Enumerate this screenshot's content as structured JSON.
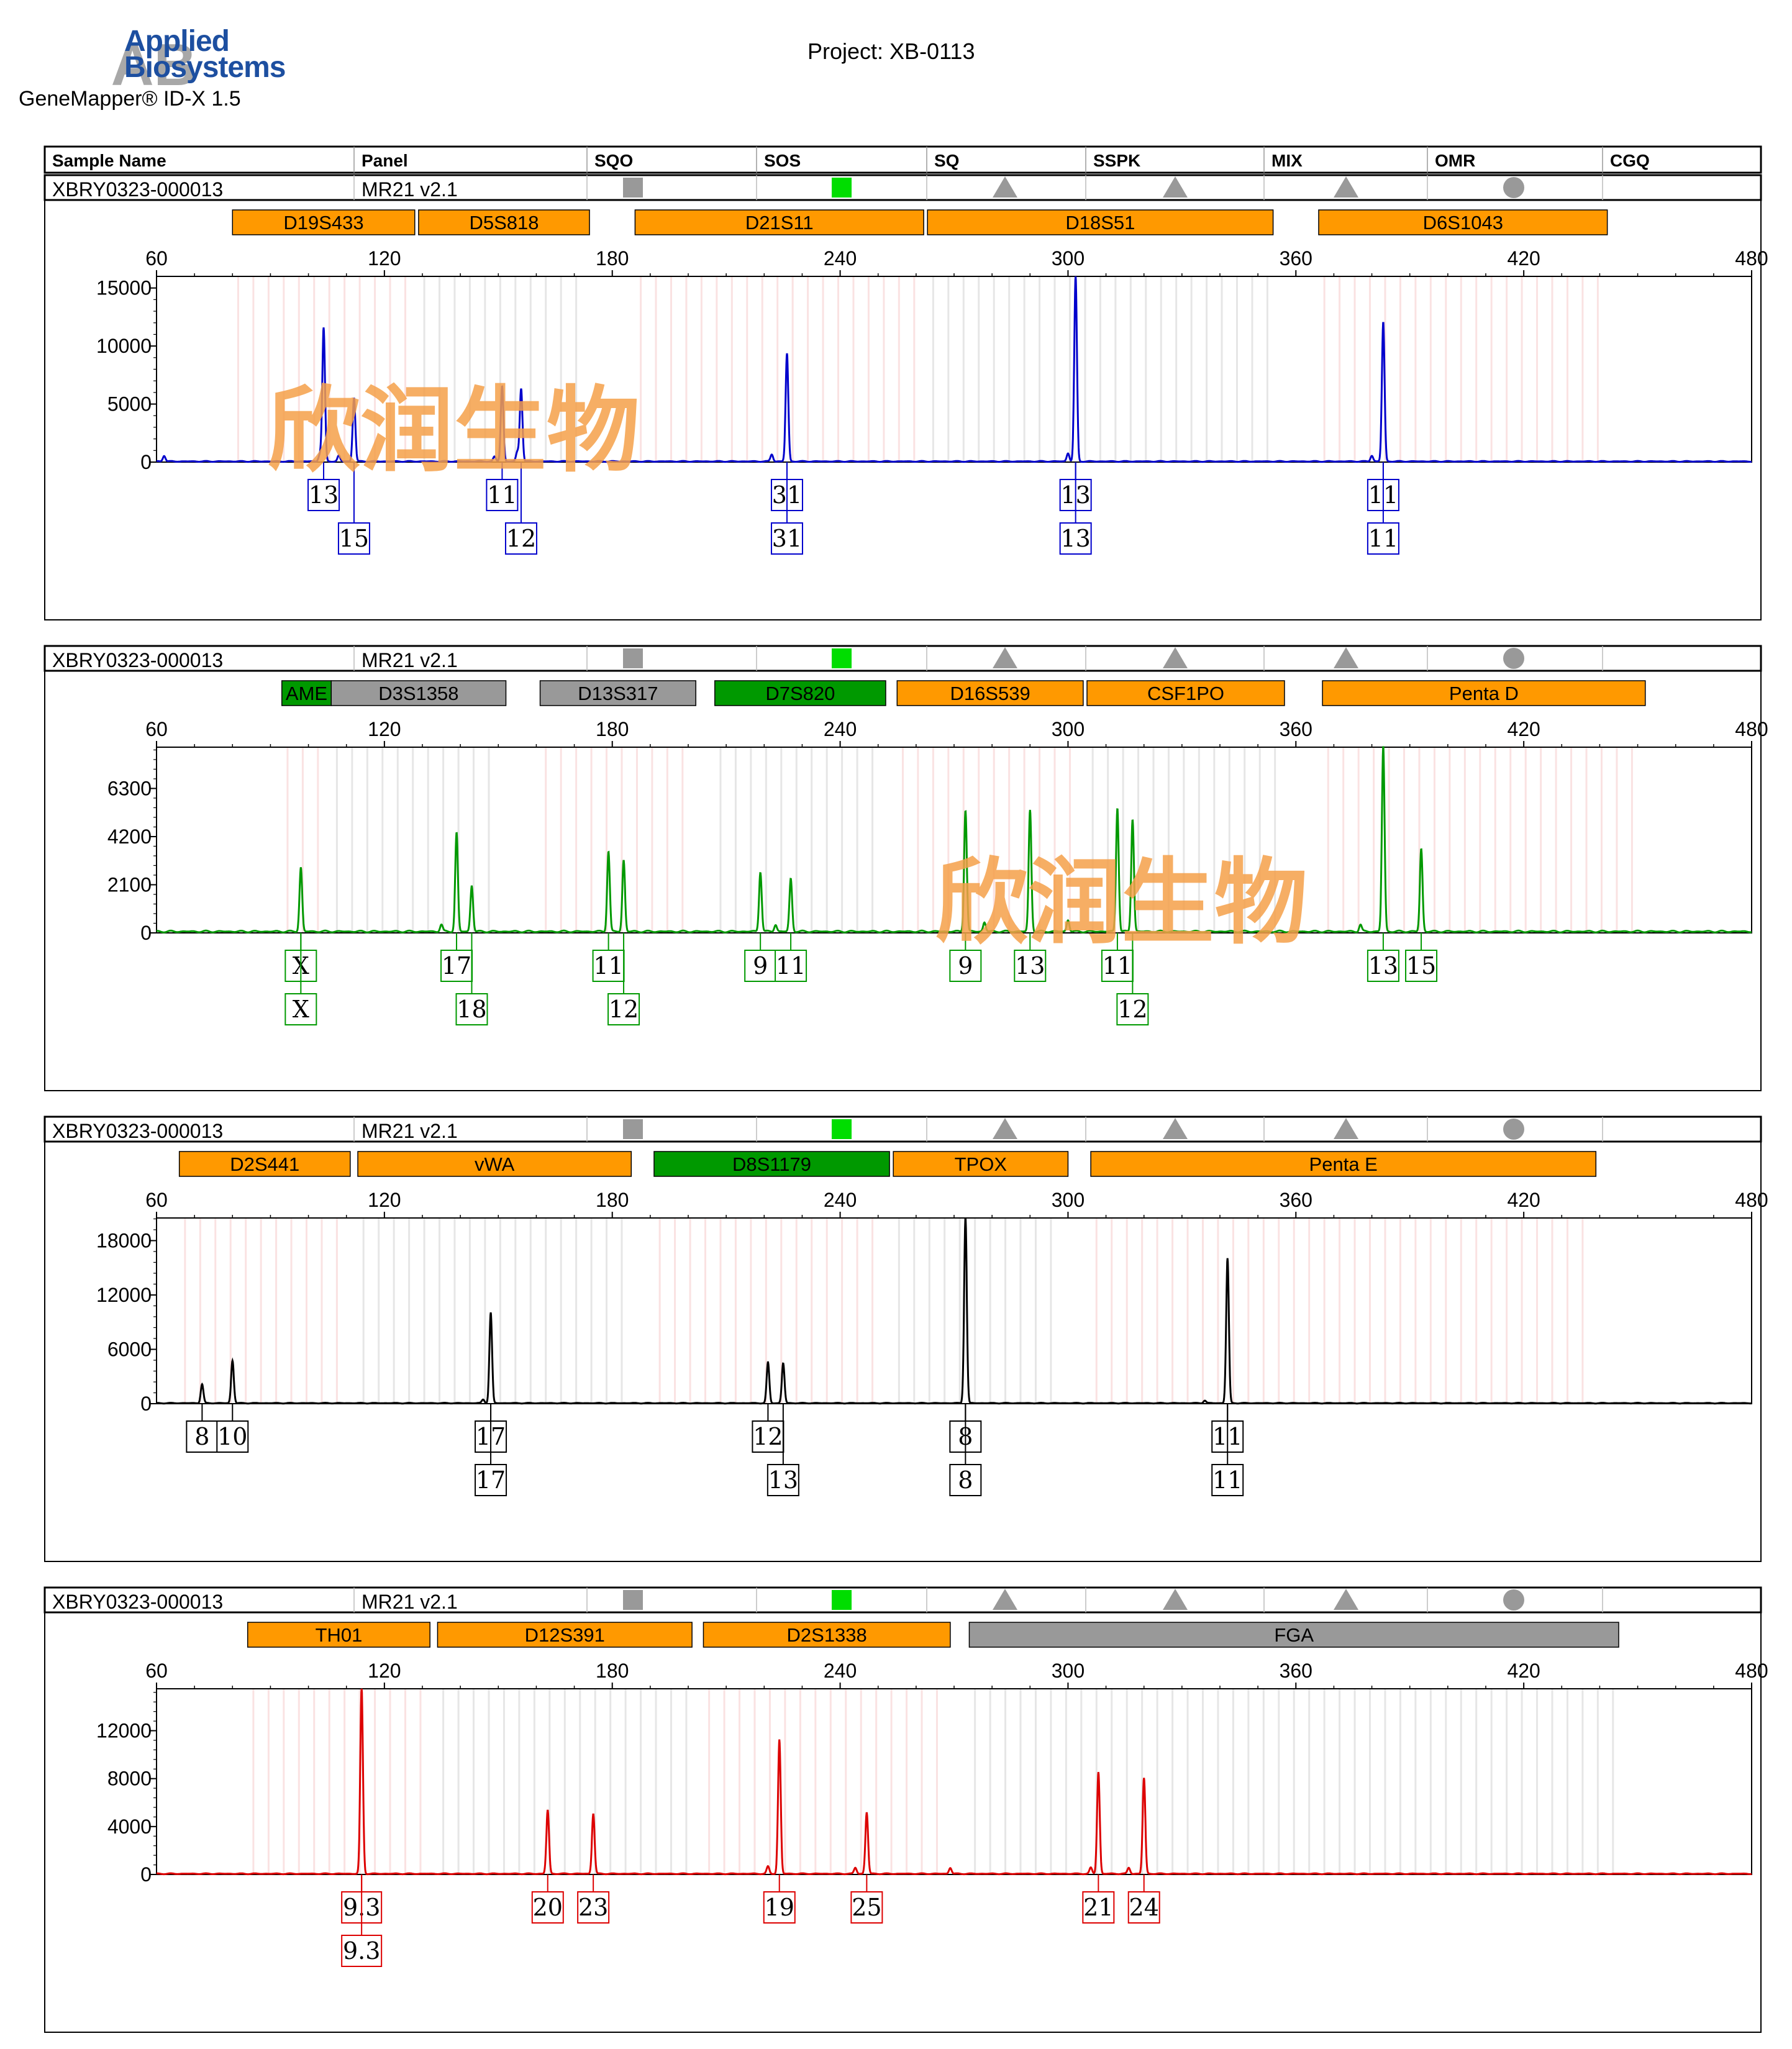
{
  "header": {
    "brand_line1": "Applied",
    "brand_line2": "Biosystems",
    "logo_letters": "AB",
    "software": "GeneMapper® ID-X  1.5",
    "project": "Project: XB-0113"
  },
  "watermark": "欣润生物",
  "table_header": [
    "Sample Name",
    "Panel",
    "SQO",
    "SOS",
    "SQ",
    "SSPK",
    "MIX",
    "OMR",
    "CGQ"
  ],
  "colors": {
    "orange": "#ff9900",
    "gray_marker": "#999999",
    "green_marker": "#009900",
    "sq_ok": "#00dd00"
  },
  "x_axis_ticks": [
    60,
    120,
    180,
    240,
    300,
    360,
    420,
    480
  ],
  "panels": [
    {
      "sample": "XBRY0323-000013",
      "panel": "MR21  v2.1",
      "flags": [
        "",
        "square-gray",
        "square-green",
        "triangle",
        "triangle",
        "triangle",
        "circle"
      ],
      "markers": [
        {
          "name": "D19S433",
          "from": 80,
          "to": 128,
          "color": "orange"
        },
        {
          "name": "D5S818",
          "from": 129,
          "to": 174,
          "color": "orange"
        },
        {
          "name": "D21S11",
          "from": 186,
          "to": 262,
          "color": "orange"
        },
        {
          "name": "D18S51",
          "from": 263,
          "to": 354,
          "color": "orange"
        },
        {
          "name": "D6S1043",
          "from": 366,
          "to": 442,
          "color": "orange"
        }
      ]
    },
    {
      "sample": "XBRY0323-000013",
      "panel": "MR21  v2.1",
      "flags": [
        "",
        "square-gray",
        "square-green",
        "triangle",
        "triangle",
        "triangle",
        "circle"
      ],
      "markers": [
        {
          "name": "AME",
          "from": 93,
          "to": 106,
          "color": "green"
        },
        {
          "name": "D3S1358",
          "from": 106,
          "to": 152,
          "color": "gray"
        },
        {
          "name": "D13S317",
          "from": 161,
          "to": 202,
          "color": "gray"
        },
        {
          "name": "D7S820",
          "from": 207,
          "to": 252,
          "color": "green"
        },
        {
          "name": "D16S539",
          "from": 255,
          "to": 304,
          "color": "orange"
        },
        {
          "name": "CSF1PO",
          "from": 305,
          "to": 357,
          "color": "orange"
        },
        {
          "name": "Penta D",
          "from": 367,
          "to": 452,
          "color": "orange"
        }
      ]
    },
    {
      "sample": "XBRY0323-000013",
      "panel": "MR21  v2.1",
      "flags": [
        "",
        "square-gray",
        "square-green",
        "triangle",
        "triangle",
        "triangle",
        "circle"
      ],
      "markers": [
        {
          "name": "D2S441",
          "from": 66,
          "to": 111,
          "color": "orange"
        },
        {
          "name": "vWA",
          "from": 113,
          "to": 185,
          "color": "orange"
        },
        {
          "name": "D8S1179",
          "from": 191,
          "to": 253,
          "color": "green"
        },
        {
          "name": "TPOX",
          "from": 254,
          "to": 300,
          "color": "orange"
        },
        {
          "name": "Penta E",
          "from": 306,
          "to": 439,
          "color": "orange"
        }
      ]
    },
    {
      "sample": "XBRY0323-000013",
      "panel": "MR21  v2.1",
      "flags": [
        "",
        "square-gray",
        "square-green",
        "triangle",
        "triangle",
        "triangle",
        "circle"
      ],
      "markers": [
        {
          "name": "TH01",
          "from": 84,
          "to": 132,
          "color": "orange"
        },
        {
          "name": "D12S391",
          "from": 134,
          "to": 201,
          "color": "orange"
        },
        {
          "name": "D2S1338",
          "from": 204,
          "to": 269,
          "color": "orange"
        },
        {
          "name": "FGA",
          "from": 274,
          "to": 445,
          "color": "gray"
        }
      ]
    }
  ],
  "chart_data": [
    {
      "type": "line",
      "color": "#0000cc",
      "xlim": [
        60,
        480
      ],
      "ylim": [
        0,
        16000
      ],
      "yticks": [
        0,
        5000,
        10000,
        15000
      ],
      "peaks": [
        [
          62,
          500
        ],
        [
          103,
          600
        ],
        [
          104,
          11500
        ],
        [
          108,
          500
        ],
        [
          112,
          5500
        ],
        [
          149,
          400
        ],
        [
          151,
          6500
        ],
        [
          155,
          800
        ],
        [
          156,
          6300
        ],
        [
          222,
          600
        ],
        [
          226,
          9300
        ],
        [
          300,
          700
        ],
        [
          302,
          16000
        ],
        [
          380,
          500
        ],
        [
          383,
          12000
        ]
      ],
      "allele_calls": [
        {
          "label": "13",
          "x": 104,
          "row": 0
        },
        {
          "label": "15",
          "x": 112,
          "row": 1
        },
        {
          "label": "11",
          "x": 151,
          "row": 0
        },
        {
          "label": "12",
          "x": 156,
          "row": 1
        },
        {
          "label": "31",
          "x": 226,
          "row": 0
        },
        {
          "label": "31",
          "x": 226,
          "row": 1
        },
        {
          "label": "13",
          "x": 302,
          "row": 0
        },
        {
          "label": "13",
          "x": 302,
          "row": 1
        },
        {
          "label": "11",
          "x": 383,
          "row": 0
        },
        {
          "label": "11",
          "x": 383,
          "row": 1
        }
      ]
    },
    {
      "type": "line",
      "color": "#009900",
      "xlim": [
        60,
        480
      ],
      "ylim": [
        0,
        8100
      ],
      "yticks": [
        0,
        2100,
        4200,
        6300
      ],
      "peaks": [
        [
          98,
          2800
        ],
        [
          135,
          300
        ],
        [
          139,
          4300
        ],
        [
          143,
          2000
        ],
        [
          179,
          3500
        ],
        [
          183,
          3100
        ],
        [
          219,
          2600
        ],
        [
          223,
          300
        ],
        [
          227,
          2300
        ],
        [
          273,
          5300
        ],
        [
          278,
          400
        ],
        [
          290,
          5300
        ],
        [
          300,
          500
        ],
        [
          313,
          5400
        ],
        [
          317,
          4900
        ],
        [
          377,
          300
        ],
        [
          383,
          8100
        ],
        [
          393,
          3600
        ]
      ],
      "allele_calls": [
        {
          "label": "X",
          "x": 98,
          "row": 0
        },
        {
          "label": "X",
          "x": 98,
          "row": 1
        },
        {
          "label": "17",
          "x": 139,
          "row": 0
        },
        {
          "label": "18",
          "x": 143,
          "row": 1
        },
        {
          "label": "11",
          "x": 179,
          "row": 0
        },
        {
          "label": "12",
          "x": 183,
          "row": 1
        },
        {
          "label": "9",
          "x": 219,
          "row": 0
        },
        {
          "label": "11",
          "x": 227,
          "row": 0
        },
        {
          "label": "9",
          "x": 273,
          "row": 0
        },
        {
          "label": "13",
          "x": 290,
          "row": 0
        },
        {
          "label": "11",
          "x": 313,
          "row": 0
        },
        {
          "label": "12",
          "x": 317,
          "row": 1
        },
        {
          "label": "13",
          "x": 383,
          "row": 0
        },
        {
          "label": "15",
          "x": 393,
          "row": 0
        }
      ]
    },
    {
      "type": "line",
      "color": "#000000",
      "xlim": [
        60,
        480
      ],
      "ylim": [
        0,
        20500
      ],
      "yticks": [
        0,
        6000,
        12000,
        18000
      ],
      "peaks": [
        [
          72,
          2100
        ],
        [
          80,
          4700
        ],
        [
          146,
          400
        ],
        [
          148,
          10000
        ],
        [
          221,
          4500
        ],
        [
          225,
          4400
        ],
        [
          273,
          20500
        ],
        [
          336,
          300
        ],
        [
          342,
          16000
        ]
      ],
      "allele_calls": [
        {
          "label": "8",
          "x": 72,
          "row": 0
        },
        {
          "label": "10",
          "x": 80,
          "row": 0
        },
        {
          "label": "17",
          "x": 148,
          "row": 0
        },
        {
          "label": "17",
          "x": 148,
          "row": 1
        },
        {
          "label": "12",
          "x": 221,
          "row": 0
        },
        {
          "label": "13",
          "x": 225,
          "row": 1
        },
        {
          "label": "8",
          "x": 273,
          "row": 0
        },
        {
          "label": "8",
          "x": 273,
          "row": 1
        },
        {
          "label": "11",
          "x": 342,
          "row": 0
        },
        {
          "label": "11",
          "x": 342,
          "row": 1
        }
      ]
    },
    {
      "type": "line",
      "color": "#dd0000",
      "xlim": [
        60,
        480
      ],
      "ylim": [
        0,
        15500
      ],
      "yticks": [
        0,
        4000,
        8000,
        12000
      ],
      "peaks": [
        [
          114,
          15500
        ],
        [
          163,
          5300
        ],
        [
          175,
          5000
        ],
        [
          221,
          600
        ],
        [
          224,
          11200
        ],
        [
          244,
          500
        ],
        [
          247,
          5100
        ],
        [
          269,
          500
        ],
        [
          306,
          500
        ],
        [
          308,
          8500
        ],
        [
          316,
          500
        ],
        [
          320,
          8000
        ]
      ],
      "allele_calls": [
        {
          "label": "9.3",
          "x": 114,
          "row": 0
        },
        {
          "label": "9.3",
          "x": 114,
          "row": 1
        },
        {
          "label": "20",
          "x": 163,
          "row": 0
        },
        {
          "label": "23",
          "x": 175,
          "row": 0
        },
        {
          "label": "19",
          "x": 224,
          "row": 0
        },
        {
          "label": "25",
          "x": 247,
          "row": 0
        },
        {
          "label": "21",
          "x": 308,
          "row": 0
        },
        {
          "label": "24",
          "x": 320,
          "row": 0
        }
      ]
    }
  ]
}
